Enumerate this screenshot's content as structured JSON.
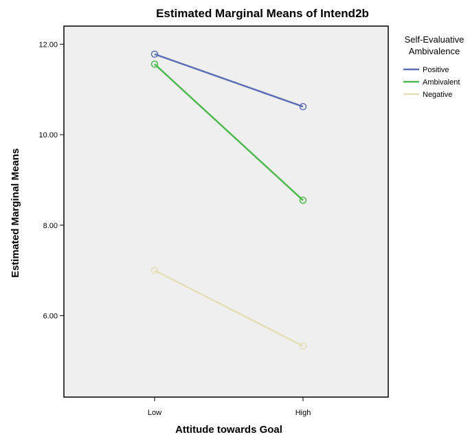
{
  "chart_data": {
    "type": "line",
    "title": "Estimated Marginal Means of Intend2b",
    "xlabel": "Attitude towards Goal",
    "ylabel": "Estimated Marginal Means",
    "categories": [
      "Low",
      "High"
    ],
    "y_ticks": [
      "6.00",
      "8.00",
      "10.00",
      "12.00"
    ],
    "ylim": [
      4.2,
      12.4
    ],
    "legend": {
      "title_lines": [
        "Self-Evaluative",
        "Ambivalence"
      ],
      "position": "right"
    },
    "series": [
      {
        "name": "Positive",
        "values": [
          11.78,
          10.62
        ],
        "color": "#5b6eb5"
      },
      {
        "name": "Ambivalent",
        "values": [
          11.56,
          8.55
        ],
        "color": "#4cb84e"
      },
      {
        "name": "Negative",
        "values": [
          7.0,
          5.33
        ],
        "color": "#e2dfb6"
      }
    ],
    "plot_background": "#efefef",
    "grid": false,
    "markers": "open-circle"
  }
}
